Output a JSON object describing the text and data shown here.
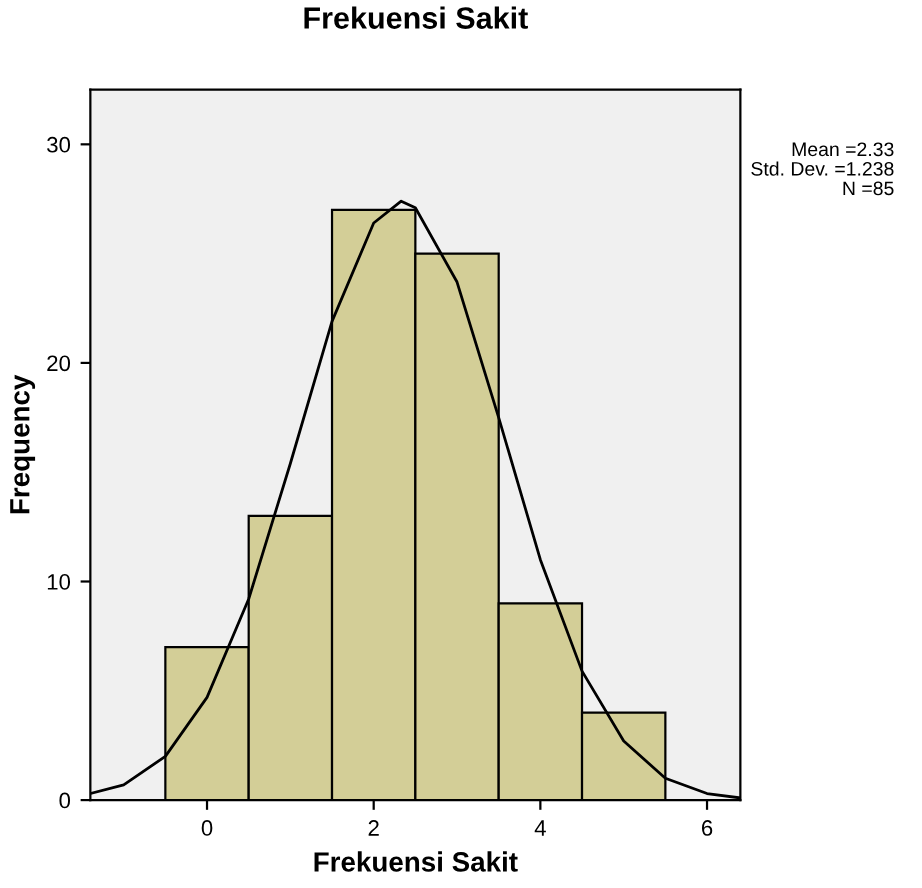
{
  "chart_data": {
    "type": "histogram",
    "title": "Frekuensi Sakit",
    "xlabel": "Frekuensi Sakit",
    "ylabel": "Frequency",
    "bins": [
      -0.5,
      0.5,
      1.5,
      2.5,
      3.5,
      4.5,
      5.5
    ],
    "values": [
      7,
      13,
      27,
      25,
      9,
      4
    ],
    "color": "#d3ce97",
    "series": [
      {
        "type": "line",
        "color": "#000000",
        "x": [
          -1.4,
          -1.0,
          -0.5,
          0,
          0.5,
          1.0,
          1.5,
          2.0,
          2.33,
          2.5,
          3.0,
          3.5,
          4.0,
          4.5,
          5.0,
          5.5,
          6.0,
          6.4
        ],
        "values": [
          0.3,
          0.7,
          2.0,
          4.7,
          9.2,
          15.4,
          21.9,
          26.4,
          27.4,
          27.1,
          23.7,
          17.5,
          11.0,
          5.9,
          2.7,
          1.0,
          0.3,
          0.1
        ]
      }
    ],
    "xlim": [
      -1.4,
      6.4
    ],
    "xticks": [
      0,
      2,
      4,
      6
    ],
    "ylim": [
      0,
      32.5
    ],
    "yticks": [
      0,
      10,
      20,
      30
    ],
    "annotations": [
      "Mean =2.33",
      "Std. Dev. =1.238",
      "N =85"
    ],
    "grid": false,
    "legend": false,
    "marker": "none"
  }
}
